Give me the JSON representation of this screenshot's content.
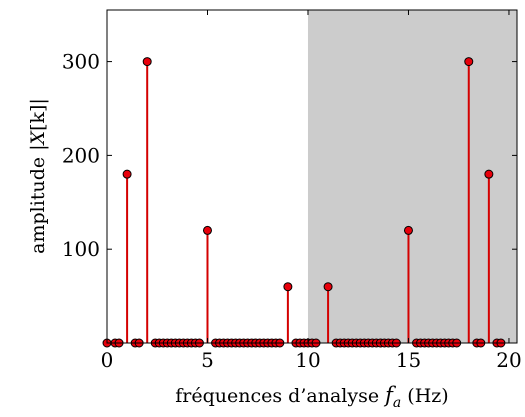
{
  "chart_data": {
    "type": "stem",
    "xlabel": "fréquences d'analyse f_a (Hz)",
    "xlabel_text": "fréquences d’analyse ",
    "xlabel_var": "f",
    "xlabel_sub": "a",
    "xlabel_unit": " (Hz)",
    "ylabel": "amplitude |X[k]|",
    "ylabel_text": "amplitude |",
    "ylabel_var": "X",
    "ylabel_bracket": "[k]|",
    "xlim": [
      0,
      20.4
    ],
    "ylim": [
      0,
      355
    ],
    "xticks": [
      0,
      5,
      10,
      15,
      20
    ],
    "yticks": [
      100,
      200,
      300
    ],
    "shaded_region": [
      10,
      20.4
    ],
    "shade_color": "#cccccc",
    "stem_color": "#d40000",
    "marker_color": "#e8000b",
    "x": [
      0,
      0.4,
      0.6,
      1,
      1.4,
      1.6,
      2,
      2.4,
      2.6,
      2.8,
      3,
      3.2,
      3.4,
      3.6,
      3.8,
      4,
      4.2,
      4.4,
      4.6,
      5,
      5.4,
      5.6,
      5.8,
      6,
      6.2,
      6.4,
      6.6,
      6.8,
      7,
      7.2,
      7.4,
      7.6,
      7.8,
      8,
      8.2,
      8.4,
      8.6,
      9,
      9.4,
      9.6,
      9.8,
      10,
      10.2,
      10.4,
      11,
      11.4,
      11.6,
      11.8,
      12,
      12.2,
      12.4,
      12.6,
      12.8,
      13,
      13.2,
      13.4,
      13.6,
      13.8,
      14,
      14.2,
      14.4,
      15,
      15.4,
      15.6,
      15.8,
      16,
      16.2,
      16.4,
      16.6,
      16.8,
      17,
      17.2,
      17.4,
      18,
      18.4,
      18.6,
      19,
      19.4,
      19.6
    ],
    "values": [
      0,
      0,
      0,
      180,
      0,
      0,
      300,
      0,
      0,
      0,
      0,
      0,
      0,
      0,
      0,
      0,
      0,
      0,
      0,
      120,
      0,
      0,
      0,
      0,
      0,
      0,
      0,
      0,
      0,
      0,
      0,
      0,
      0,
      0,
      0,
      0,
      0,
      60,
      0,
      0,
      0,
      0,
      0,
      0,
      60,
      0,
      0,
      0,
      0,
      0,
      0,
      0,
      0,
      0,
      0,
      0,
      0,
      0,
      0,
      0,
      0,
      120,
      0,
      0,
      0,
      0,
      0,
      0,
      0,
      0,
      0,
      0,
      0,
      300,
      0,
      0,
      180,
      0,
      0
    ]
  }
}
